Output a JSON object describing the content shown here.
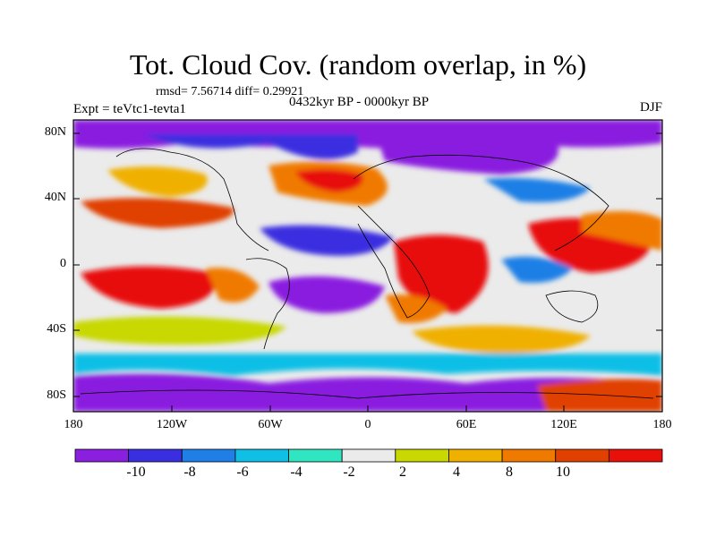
{
  "title": "Tot. Cloud Cov. (random overlap, in %)",
  "stats": "rmsd= 7.56714  diff= 0.29921",
  "period": "0432kyr BP - 0000kyr BP",
  "experiment": "Expt = teVtc1-tevta1",
  "season": "DJF",
  "lat_ticks": [
    "80N",
    "40N",
    "0",
    "40S",
    "80S"
  ],
  "lon_ticks": [
    "180",
    "120W",
    "60W",
    "0",
    "60E",
    "120E",
    "180"
  ],
  "colorbar": {
    "labels": [
      "-10",
      "-8",
      "-6",
      "-4",
      "-2",
      "2",
      "4",
      "8",
      "10"
    ],
    "colors": [
      "#8a1fe0",
      "#3a2fe0",
      "#1f7fe6",
      "#10bfe6",
      "#2fe6c0",
      "#ebebeb",
      "#c8d800",
      "#f0b000",
      "#f07a00",
      "#e04000",
      "#e8100a"
    ]
  }
}
